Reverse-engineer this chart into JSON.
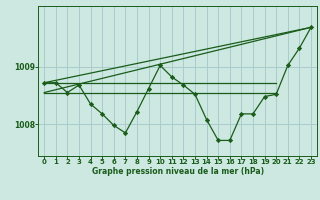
{
  "title": "Graphe pression niveau de la mer (hPa)",
  "bg_color": "#cce8e0",
  "grid_color": "#aacccc",
  "line_color": "#1a5c1a",
  "xlim": [
    -0.5,
    23.5
  ],
  "ylim": [
    1007.45,
    1010.05
  ],
  "yticks": [
    1008,
    1009
  ],
  "xticks": [
    0,
    1,
    2,
    3,
    4,
    5,
    6,
    7,
    8,
    9,
    10,
    11,
    12,
    13,
    14,
    15,
    16,
    17,
    18,
    19,
    20,
    21,
    22,
    23
  ],
  "series_main": {
    "x": [
      0,
      1,
      2,
      3,
      4,
      5,
      6,
      7,
      8,
      9,
      10,
      11,
      12,
      13,
      14,
      15,
      16,
      17,
      18,
      19,
      20,
      21,
      22,
      23
    ],
    "y": [
      1008.72,
      1008.72,
      1008.55,
      1008.68,
      1008.35,
      1008.18,
      1007.98,
      1007.85,
      1008.22,
      1008.62,
      1009.02,
      1008.82,
      1008.68,
      1008.52,
      1008.08,
      1007.72,
      1007.72,
      1008.18,
      1008.18,
      1008.48,
      1008.52,
      1009.02,
      1009.32,
      1009.68
    ]
  },
  "series_flat1": {
    "x": [
      0,
      20
    ],
    "y": [
      1008.72,
      1008.72
    ]
  },
  "series_flat2": {
    "x": [
      0,
      20
    ],
    "y": [
      1008.55,
      1008.55
    ]
  },
  "series_trend1": {
    "x": [
      0,
      23
    ],
    "y": [
      1008.72,
      1009.68
    ]
  },
  "series_trend2": {
    "x": [
      0,
      23
    ],
    "y": [
      1008.55,
      1009.68
    ]
  }
}
